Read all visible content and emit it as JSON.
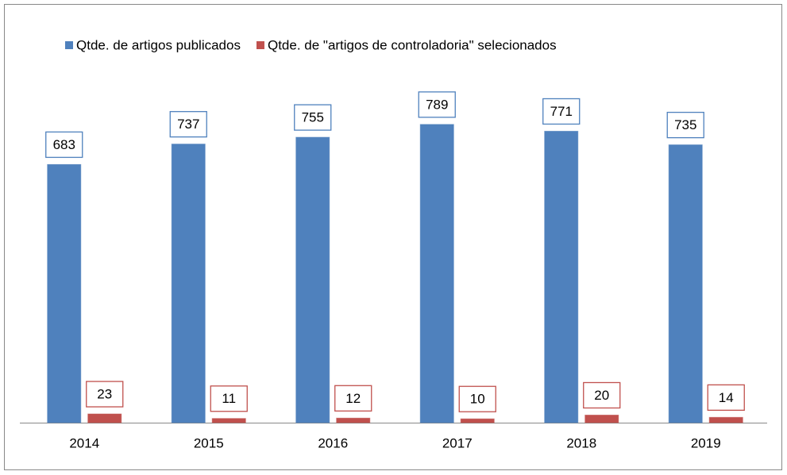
{
  "chart_data": {
    "type": "bar",
    "categories": [
      "2014",
      "2015",
      "2016",
      "2017",
      "2018",
      "2019"
    ],
    "series": [
      {
        "name": "Qtde. de artigos publicados",
        "color": "#4f81bd",
        "values": [
          683,
          737,
          755,
          789,
          771,
          735
        ]
      },
      {
        "name": "Qtde. de \"artigos de controladoria\" selecionados",
        "color": "#c0504d",
        "values": [
          23,
          11,
          12,
          10,
          20,
          14
        ]
      }
    ],
    "ylim": [
      0,
      900
    ],
    "legend": "top"
  }
}
